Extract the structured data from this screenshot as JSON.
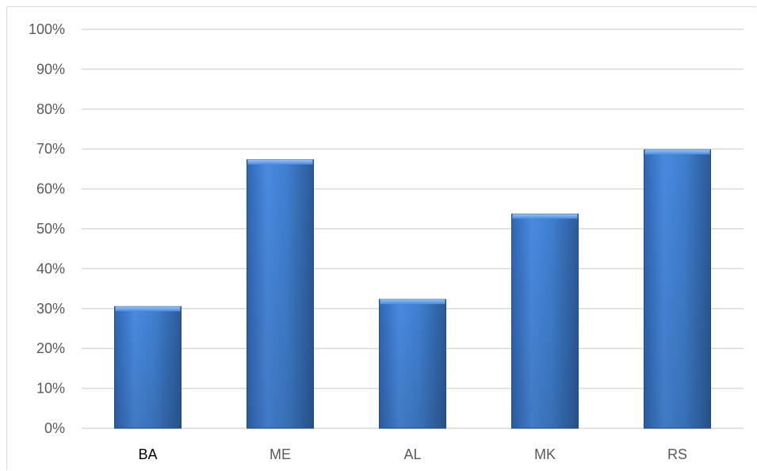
{
  "chart_data": {
    "type": "bar",
    "title": "",
    "xlabel": "",
    "ylabel": "",
    "categories": [
      "BA",
      "ME",
      "AL",
      "MK",
      "RS"
    ],
    "values": [
      30.5,
      67.3,
      32.3,
      53.7,
      69.8
    ],
    "ylim": [
      0,
      100
    ],
    "yticks": [
      0,
      10,
      20,
      30,
      40,
      50,
      60,
      70,
      80,
      90,
      100
    ],
    "ytick_labels": [
      "0%",
      "10%",
      "20%",
      "30%",
      "40%",
      "50%",
      "60%",
      "70%",
      "80%",
      "90%",
      "100%"
    ],
    "grid": true,
    "legend": "none",
    "bar_color": "#3f7fd0",
    "bar_color_dark": "#2c5f9e",
    "grid_color": "#d9d9d9",
    "label_color": "#595959"
  }
}
